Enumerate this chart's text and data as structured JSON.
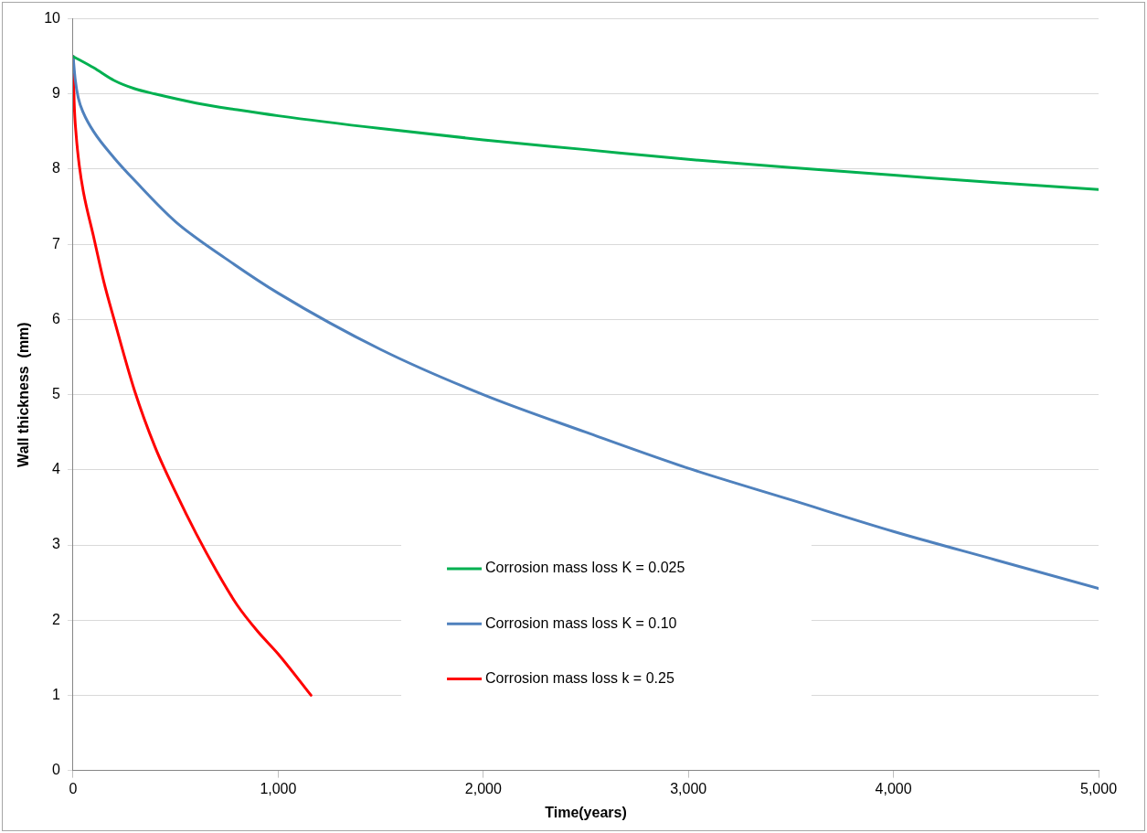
{
  "chart_data": {
    "type": "line",
    "xlabel": "Time(years)",
    "ylabel": "Wall thickness  (mm)",
    "xlim": [
      0,
      5000
    ],
    "xticks": [
      {
        "value": 0,
        "label": "0"
      },
      {
        "value": 1000,
        "label": "1,000"
      },
      {
        "value": 2000,
        "label": "2,000"
      },
      {
        "value": 3000,
        "label": "3,000"
      },
      {
        "value": 4000,
        "label": "4,000"
      },
      {
        "value": 5000,
        "label": "5,000"
      }
    ],
    "ylim": [
      0,
      10
    ],
    "yticks": [
      0,
      1,
      2,
      3,
      4,
      5,
      6,
      7,
      8,
      9,
      10
    ],
    "grid": "y",
    "legend": "bottom",
    "marker": "none",
    "line_style": "solid",
    "series": [
      {
        "name": "Corrosion mass loss K = 0.025",
        "color": "#00b050",
        "x": [
          0,
          100,
          200,
          300,
          400,
          600,
          800,
          1000,
          1500,
          2000,
          2500,
          3000,
          3500,
          4000,
          4500,
          5000
        ],
        "values": [
          9.5,
          9.35,
          9.18,
          9.07,
          9.0,
          8.88,
          8.79,
          8.71,
          8.54,
          8.39,
          8.26,
          8.13,
          8.02,
          7.92,
          7.82,
          7.73
        ]
      },
      {
        "name": "Corrosion mass loss K = 0.10",
        "color": "#4f81bd",
        "x": [
          0,
          10,
          25,
          50,
          100,
          200,
          300,
          500,
          750,
          1000,
          1500,
          2000,
          2500,
          3000,
          3500,
          4000,
          4500,
          5000
        ],
        "values": [
          9.5,
          9.2,
          8.95,
          8.75,
          8.5,
          8.15,
          7.85,
          7.3,
          6.8,
          6.35,
          5.6,
          5.0,
          4.5,
          4.02,
          3.6,
          3.18,
          2.8,
          2.42
        ]
      },
      {
        "name": "Corrosion mass loss k = 0.25",
        "color": "#ff0000",
        "x": [
          0,
          5,
          15,
          30,
          50,
          100,
          150,
          200,
          300,
          400,
          500,
          600,
          700,
          800,
          900,
          1000,
          1160
        ],
        "values": [
          9.5,
          8.9,
          8.45,
          8.05,
          7.7,
          7.1,
          6.5,
          6.0,
          5.05,
          4.3,
          3.7,
          3.15,
          2.65,
          2.2,
          1.85,
          1.55,
          1.0
        ]
      }
    ]
  }
}
